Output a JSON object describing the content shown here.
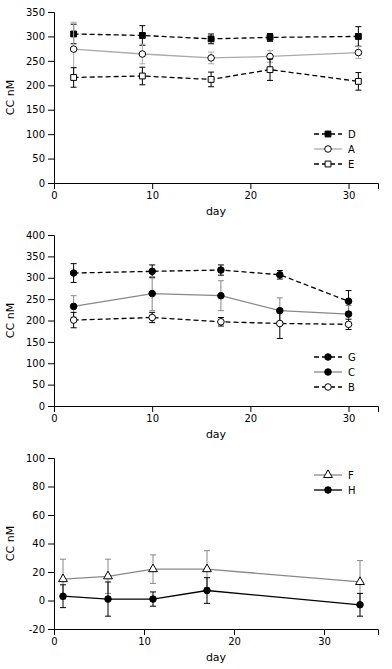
{
  "chart_data": [
    {
      "type": "line",
      "xlabel": "day",
      "ylabel": "CC nM",
      "x": [
        2,
        9,
        16,
        22,
        31
      ],
      "xlim": [
        0,
        33
      ],
      "xticks": [
        0,
        10,
        20,
        30
      ],
      "ylim": [
        0,
        350
      ],
      "yticks": [
        0,
        50,
        100,
        150,
        200,
        250,
        300,
        350
      ],
      "grid": false,
      "legend": "lower right",
      "series": [
        {
          "name": "D",
          "color": "black",
          "marker": "square",
          "line_style": "dashed",
          "values": [
            305,
            302,
            295,
            298,
            300
          ],
          "errors": [
            20,
            20,
            10,
            8,
            20
          ]
        },
        {
          "name": "A",
          "color": "#aaaaaa",
          "marker": "circle-open",
          "line_style": "solid",
          "values": [
            274,
            264,
            256,
            259,
            267
          ],
          "errors": [
            55,
            20,
            12,
            12,
            12
          ]
        },
        {
          "name": "E",
          "color": "black",
          "marker": "square-open",
          "line_style": "dashed",
          "values": [
            216,
            219,
            212,
            232,
            208
          ],
          "errors": [
            20,
            18,
            15,
            22,
            18
          ]
        }
      ]
    },
    {
      "type": "line",
      "xlabel": "day",
      "ylabel": "CC nM",
      "x": [
        2,
        10,
        17,
        23,
        30
      ],
      "xlim": [
        0,
        33
      ],
      "xticks": [
        0,
        10,
        20,
        30
      ],
      "ylim": [
        0,
        400
      ],
      "yticks": [
        0,
        50,
        100,
        150,
        200,
        250,
        300,
        350,
        400
      ],
      "grid": false,
      "legend": "lower right",
      "series": [
        {
          "name": "G",
          "color": "black",
          "marker": "circle",
          "line_style": "dashed",
          "values": [
            311,
            315,
            318,
            307,
            245
          ],
          "errors": [
            22,
            15,
            12,
            10,
            25
          ]
        },
        {
          "name": "C",
          "color": "#888888",
          "marker": "circle",
          "line_style": "solid",
          "values": [
            233,
            263,
            258,
            223,
            215
          ],
          "errors": [
            25,
            40,
            35,
            30,
            20
          ]
        },
        {
          "name": "B",
          "color": "black",
          "marker": "circle-open",
          "line_style": "dashed",
          "values": [
            201,
            207,
            197,
            193,
            191
          ],
          "errors": [
            18,
            12,
            10,
            35,
            12
          ]
        }
      ]
    },
    {
      "type": "line",
      "xlabel": "day",
      "ylabel": "CC nM",
      "x": [
        1,
        6,
        11,
        17,
        34
      ],
      "xlim": [
        0,
        36
      ],
      "xticks": [
        0,
        10,
        20,
        30
      ],
      "ylim": [
        -20,
        100
      ],
      "yticks": [
        -20,
        0,
        20,
        40,
        60,
        80,
        100
      ],
      "grid": false,
      "legend": "upper right",
      "series": [
        {
          "name": "F",
          "color": "#888888",
          "marker": "triangle-open",
          "line_style": "solid",
          "values": [
            15,
            17,
            22,
            22,
            13
          ],
          "errors": [
            14,
            12,
            10,
            13,
            15
          ]
        },
        {
          "name": "H",
          "color": "black",
          "marker": "circle",
          "line_style": "solid",
          "values": [
            3,
            1,
            1,
            7,
            -3
          ],
          "errors": [
            8,
            12,
            5,
            9,
            8
          ]
        }
      ]
    }
  ]
}
